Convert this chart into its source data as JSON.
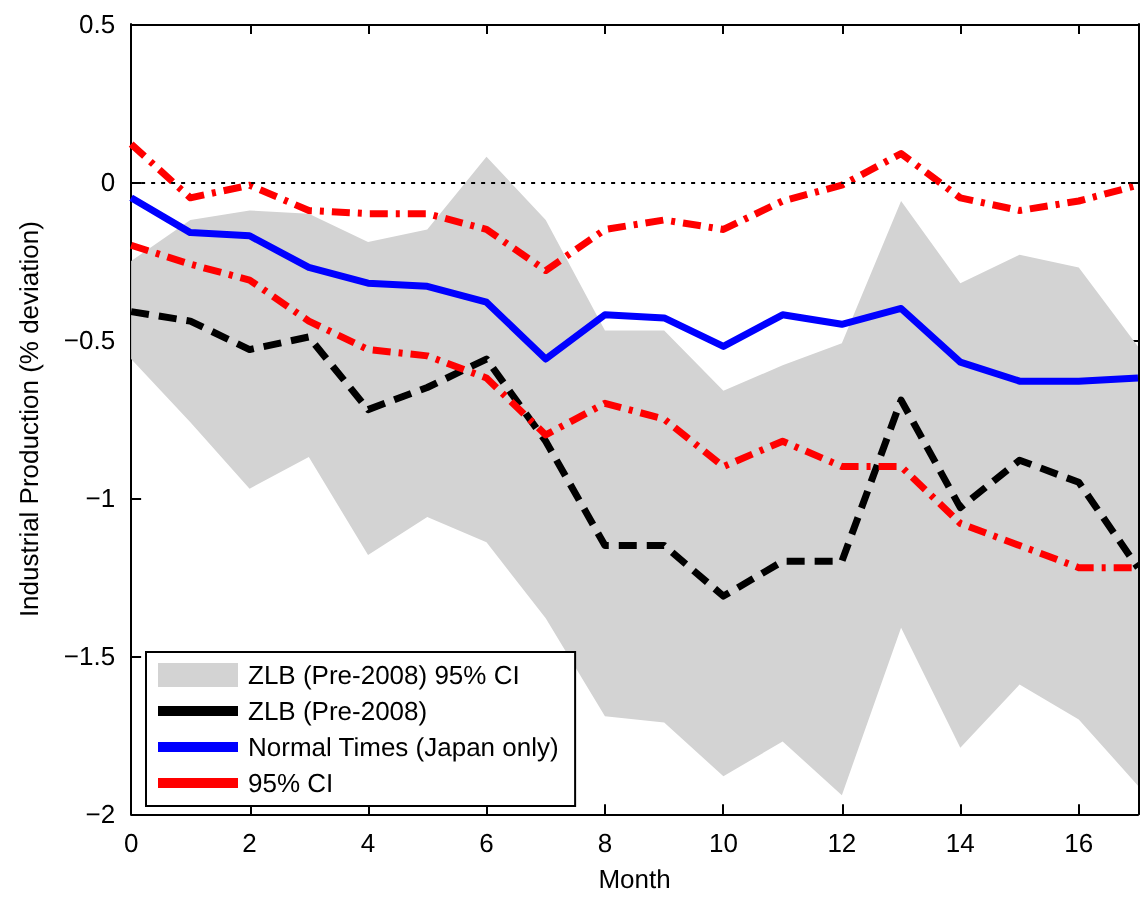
{
  "chart_data": {
    "type": "line",
    "xlabel": "Month",
    "ylabel": "Industrial Production (% deviation)",
    "x": [
      0,
      1,
      2,
      3,
      4,
      5,
      6,
      7,
      8,
      9,
      10,
      11,
      12,
      13,
      14,
      15,
      16,
      17
    ],
    "series": [
      {
        "name": "ZLB (Pre-2008) 95% CI",
        "type": "area",
        "color": "#d3d3d3",
        "values": [
          null,
          null,
          null,
          null,
          null,
          null,
          null,
          null,
          null,
          null,
          null,
          null,
          null,
          null,
          null,
          null,
          null,
          null
        ],
        "lower": [
          -0.56,
          -0.76,
          -0.97,
          -0.87,
          -1.18,
          -1.06,
          -1.14,
          -1.38,
          -1.69,
          -1.71,
          -1.88,
          -1.77,
          -1.94,
          -1.41,
          -1.79,
          -1.59,
          -1.7,
          -1.91
        ],
        "upper": [
          -0.25,
          -0.12,
          -0.09,
          -0.1,
          -0.19,
          -0.15,
          0.08,
          -0.12,
          -0.47,
          -0.47,
          -0.66,
          -0.58,
          -0.51,
          -0.06,
          -0.32,
          -0.23,
          -0.27,
          -0.52
        ]
      },
      {
        "name": "ZLB (Pre-2008)",
        "color": "#000000",
        "line_style": "dashed",
        "values": [
          -0.41,
          -0.44,
          -0.53,
          -0.49,
          -0.72,
          -0.65,
          -0.56,
          -0.82,
          -1.15,
          -1.15,
          -1.31,
          -1.2,
          -1.2,
          -0.69,
          -1.03,
          -0.88,
          -0.95,
          -1.22
        ]
      },
      {
        "name": "Normal Times (Japan only)",
        "color": "#0000ff",
        "line_style": "solid",
        "values": [
          -0.05,
          -0.16,
          -0.17,
          -0.27,
          -0.32,
          -0.33,
          -0.38,
          -0.56,
          -0.42,
          -0.43,
          -0.52,
          -0.42,
          -0.45,
          -0.4,
          -0.57,
          -0.63,
          -0.63,
          -0.62
        ]
      },
      {
        "name": "95% CI",
        "color": "#ff0000",
        "line_style": "dashdot",
        "values": [
          0.12,
          -0.05,
          -0.01,
          -0.09,
          -0.1,
          -0.1,
          -0.15,
          -0.28,
          -0.15,
          -0.12,
          -0.15,
          -0.06,
          -0.01,
          0.09,
          -0.05,
          -0.09,
          -0.06,
          -0.01
        ]
      },
      {
        "color": "#ff0000",
        "line_style": "dashdot",
        "values": [
          -0.2,
          -0.26,
          -0.31,
          -0.44,
          -0.53,
          -0.55,
          -0.62,
          -0.8,
          -0.7,
          -0.75,
          -0.9,
          -0.82,
          -0.9,
          -0.9,
          -1.08,
          -1.15,
          -1.22,
          -1.22
        ]
      }
    ],
    "xlim": [
      0,
      17
    ],
    "xticks": [
      0,
      2,
      4,
      6,
      8,
      10,
      12,
      14,
      16
    ],
    "ylim": [
      -2,
      0.5
    ],
    "yticks": [
      {
        "value": -2,
        "label": "−2"
      },
      {
        "value": -1.5,
        "label": "−1.5"
      },
      {
        "value": -1,
        "label": "−1"
      },
      {
        "value": -0.5,
        "label": "−0.5"
      },
      0,
      0.5
    ],
    "ref_lines": [
      {
        "axis": "y",
        "value": 0,
        "color": "#000000",
        "line_style": "dotted"
      }
    ],
    "legend": "bottom left",
    "grid": false,
    "marker": "none"
  }
}
